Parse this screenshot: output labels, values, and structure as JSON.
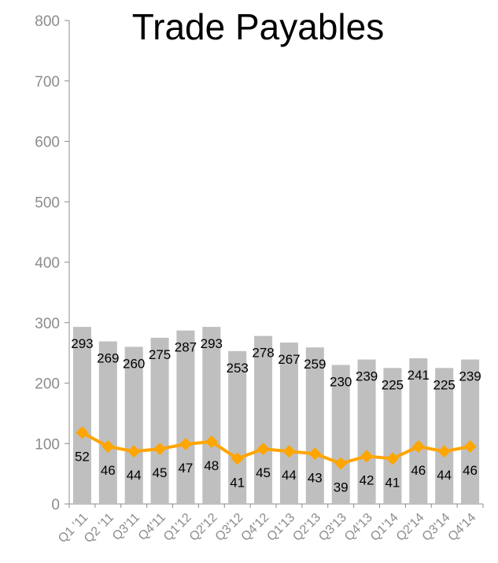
{
  "chart_data": {
    "type": "bar",
    "title": "Trade Payables",
    "categories": [
      "Q1 '11",
      "Q2 '11",
      "Q3'11",
      "Q4'11",
      "Q1'12",
      "Q2'12",
      "Q3'12",
      "Q4'12",
      "Q1'13",
      "Q2'13",
      "Q3'13",
      "Q4'13",
      "Q1'14",
      "Q2'14",
      "Q3'14",
      "Q4'14"
    ],
    "yticks": [
      "0",
      "100",
      "200",
      "300",
      "400",
      "500",
      "600",
      "700",
      "800"
    ],
    "ylim": [
      0,
      800
    ],
    "series": [
      {
        "type": "bar",
        "color": "#bfbfbf",
        "values": [
          293,
          269,
          260,
          275,
          287,
          293,
          253,
          278,
          267,
          259,
          230,
          239,
          225,
          241,
          225,
          239
        ],
        "labels": [
          "293",
          "269",
          "260",
          "275",
          "287",
          "293",
          "253",
          "278",
          "267",
          "259",
          "230",
          "239",
          "225",
          "241",
          "225",
          "239"
        ]
      },
      {
        "type": "line",
        "color": "#ffa500",
        "marker": "diamond",
        "values": [
          118,
          95,
          87,
          91,
          99,
          103,
          75,
          91,
          87,
          83,
          67,
          79,
          75,
          95,
          87,
          95
        ],
        "labels": [
          "52",
          "46",
          "44",
          "45",
          "47",
          "48",
          "41",
          "45",
          "44",
          "43",
          "39",
          "42",
          "41",
          "46",
          "44",
          "46"
        ]
      }
    ],
    "grid": false,
    "legend": "none"
  }
}
